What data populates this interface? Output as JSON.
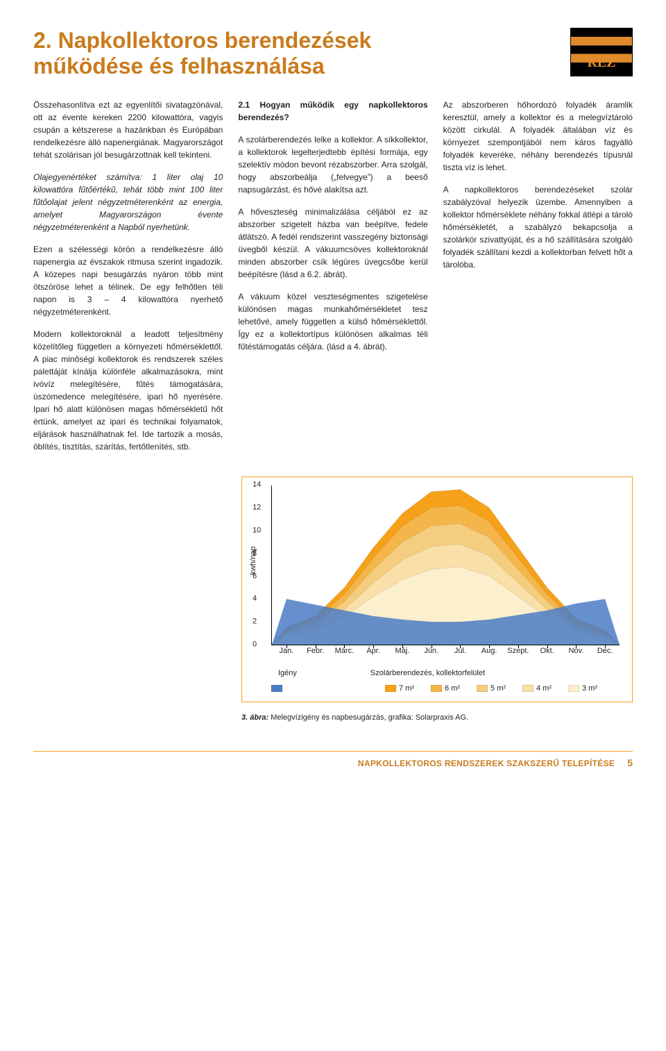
{
  "title_line1": "2. Napkollektoros berendezések",
  "title_line2": "működése és felhasználása",
  "logo_text": "RÉZ",
  "col1": {
    "p1": "Összehasonlítva ezt az egyenlítői sivatagzónával, ott az évente kereken 2200 kilowattóra, vagyis csupán a kétszerese a hazánkban és Európában rendelkezésre álló napenergiának. Magyarországot tehát szolárisan jól besugárzottnak kell tekinteni.",
    "p_italic": "Olajegyenértéket számítva: 1 liter olaj 10 kilowattóra fűtőértékű, tehát több mint 100 liter fűtőolajat jelent négyzet­méterenként az energia, amelyet Magyarországon évente négyzetméterenként a Napból nyerhetünk.",
    "p2": "Ezen a szélességi körön a rendelkezésre álló napenergia az évszakok ritmusa szerint ingadozik. A közepes napi besugárzás nyáron több mint ötszöröse lehet a télinek. De egy felhőtlen téli napon is 3 – 4 kilowattóra nyerhető négyzetméterenként.",
    "p3": "Modern kollektoroknál a leadott teljesítmény közelítőleg független a környezeti hőmérséklettől. A piac minőségi kollektorok és rendszerek széles palettáját kínálja különféle alkalmazásokra, mint ivóvíz melegítésére, fűtés támogatására, úszómedence melegítésére, ipari hő nyerésére. Ipari hő alatt különösen magas hőmérsékletű hőt értünk, amelyet az ipari és technikai folyamatok, eljárások használhatnak fel. Ide tartozik a mosás, öblítés, tisztítás, szárítás, fertőtlenítés, stb."
  },
  "col2": {
    "q_head": "2.1 Hogyan működik egy napkollektoros berendezés?",
    "p1": "A szolárberendezés lelke a kollektor. A síkkollektor, a kollektorok legelterjedtebb építési formája, egy szelektív módon bevont rézabszorber. Arra szolgál, hogy abszorbeálja („felvegye”) a beeső napsugárzást, és hővé alakítsa azt.",
    "p2": "A hőveszteség minimalizálása céljából ez az abszorber szigetelt házba van beépítve, fedele átlátszó. A fedél rendszerint vasszegény biztonsági üvegből készül. A vákuumcsöves kollektoroknál minden abszorber csík légüres üvegcsőbe kerül beépítésre (lásd a 6.2. ábrát).",
    "p3": "A vákuum közel veszteségmentes szigetelése különösen magas munkahőmérsékletet tesz lehetővé, amely független a külső hőmérséklettől. Így ez a kollektortípus különösen alkalmas téli fűtéstámogatás céljára. (lásd a 4. ábrát)."
  },
  "col3": {
    "p1": "Az abszorberen hőhordozó folyadék áramlik keresztül, amely a kollektor és a melegvíztároló között cirkulál. A folyadék általában víz és környezet szempontjából nem káros fagyálló folyadék keveréke, néhány berendezés típusnál tiszta víz is lehet.",
    "p2": "A napkollektoros berendezéseket szolár szabályzóval helyezik üzembe. Amennyiben a kollektor hőmérséklete néhány fokkal átlépi a tároló hőmérsékletét, a szabályzó bekapcsolja a szolárkör szivattyúját, és a hő szállítására szolgáló folyadék szállítani kezdi a kollektorban felvett hőt a tárolóba."
  },
  "chart": {
    "ylabel": "kwh/nap",
    "ymax": 14,
    "ytick_step": 2,
    "months": [
      "Jan.",
      "Febr.",
      "Márc.",
      "Ápr.",
      "Máj.",
      "Jún.",
      "Júl.",
      "Aug.",
      "Szept.",
      "Okt.",
      "Nov.",
      "Dec."
    ],
    "layers": [
      {
        "label": "Igény",
        "color": "#4a7dc4",
        "peaks": [
          4.0,
          3.5,
          3.0,
          2.5,
          2.2,
          2.0,
          2.0,
          2.2,
          2.6,
          3.0,
          3.6,
          4.0
        ]
      },
      {
        "label": "7 m²",
        "color": "#f6a11a",
        "peaks": [
          1.5,
          2.5,
          5.0,
          8.5,
          11.5,
          13.4,
          13.6,
          12.0,
          8.5,
          5.0,
          2.3,
          1.3
        ]
      },
      {
        "label": "6 m²",
        "color": "#f4b64a",
        "peaks": [
          1.3,
          2.2,
          4.4,
          7.6,
          10.4,
          12.0,
          12.2,
          10.8,
          7.6,
          4.4,
          2.0,
          1.1
        ]
      },
      {
        "label": "5 m²",
        "color": "#f5cd7e",
        "peaks": [
          1.1,
          1.9,
          3.8,
          6.6,
          9.0,
          10.4,
          10.6,
          9.4,
          6.6,
          3.8,
          1.7,
          0.9
        ]
      },
      {
        "label": "4 m²",
        "color": "#f8e0a8",
        "peaks": [
          0.9,
          1.6,
          3.1,
          5.4,
          7.4,
          8.6,
          8.8,
          7.8,
          5.4,
          3.1,
          1.4,
          0.7
        ]
      },
      {
        "label": "3 m²",
        "color": "#fbefcd",
        "peaks": [
          0.7,
          1.2,
          2.4,
          4.2,
          5.7,
          6.6,
          6.8,
          6.0,
          4.2,
          2.4,
          1.1,
          0.6
        ]
      }
    ],
    "legend_col1": "Igény",
    "legend_col2": "Szolárberendezés, kollektorfelület"
  },
  "fig_caption_bold": "3. ábra:",
  "fig_caption_text": " Melegvízigény és napbesugárzás, grafika: Solarpraxis AG.",
  "footer_title": "NAPKOLLEKTOROS RENDSZEREK SZAKSZERŰ TELEPÍTÉSE",
  "footer_page": "5",
  "colors": {
    "accent": "#f6a11a",
    "title": "#c97b1d",
    "text": "#231f20"
  }
}
